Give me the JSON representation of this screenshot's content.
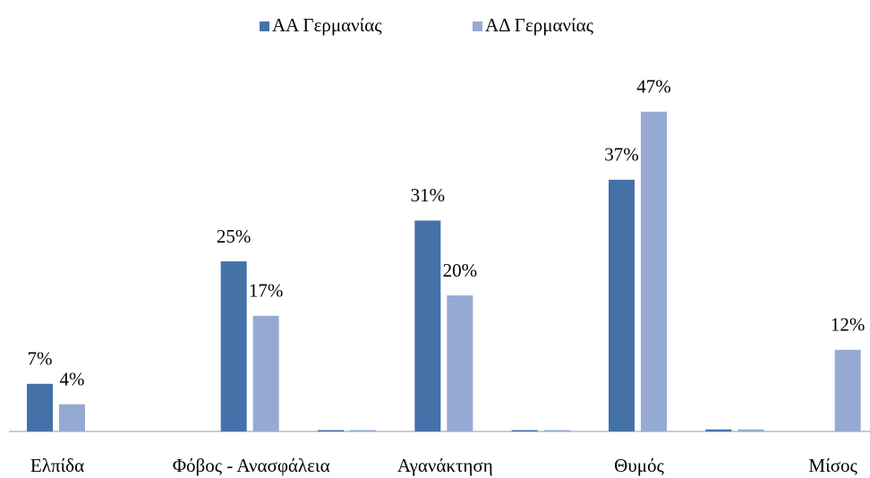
{
  "chart_data": {
    "type": "bar",
    "categories": [
      "Ελπίδα",
      null,
      "Φόβος - Ανασφάλεια",
      null,
      "Αγανάκτηση",
      null,
      "Θυμός",
      null,
      "Μίσος"
    ],
    "series": [
      {
        "name": "ΑΑ Γερμανίας",
        "color": "#4472a8",
        "values": [
          7,
          0,
          25,
          0.2,
          31,
          0.2,
          37,
          0.3,
          0
        ],
        "value_labels": [
          "7%",
          null,
          "25%",
          null,
          "31%",
          null,
          "37%",
          null,
          null
        ]
      },
      {
        "name": "ΑΔ Γερμανίας",
        "color": "#95a9d3",
        "values": [
          4,
          0,
          17,
          0.2,
          20,
          0.2,
          47,
          0.3,
          12
        ],
        "value_labels": [
          "4%",
          null,
          "17%",
          null,
          "20%",
          null,
          "47%",
          null,
          "12%"
        ]
      }
    ],
    "ylim": [
      0,
      50
    ],
    "legend": "top"
  }
}
